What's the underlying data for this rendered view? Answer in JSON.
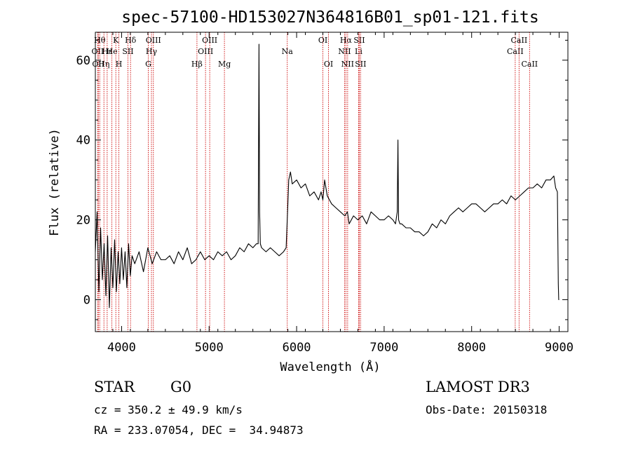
{
  "chart_data": {
    "type": "line",
    "title": "spec-57100-HD153027N364816B01_sp01-121.fits",
    "xlabel": "Wavelength (Å)",
    "ylabel": "Flux (relative)",
    "xlim": [
      3700,
      9100
    ],
    "ylim": [
      -8,
      67
    ],
    "xticks": [
      4000,
      5000,
      6000,
      7000,
      8000,
      9000
    ],
    "yticks": [
      0,
      20,
      40,
      60
    ],
    "grid": false,
    "series": [
      {
        "x": [
          3700,
          3720,
          3740,
          3760,
          3780,
          3800,
          3820,
          3840,
          3860,
          3880,
          3900,
          3920,
          3940,
          3960,
          3980,
          4000,
          4020,
          4040,
          4060,
          4080,
          4100,
          4120,
          4150,
          4200,
          4250,
          4300,
          4350,
          4400,
          4450,
          4500,
          4550,
          4600,
          4650,
          4700,
          4750,
          4800,
          4850,
          4900,
          4950,
          5000,
          5050,
          5100,
          5150,
          5200,
          5250,
          5300,
          5350,
          5400,
          5450,
          5500,
          5540,
          5560,
          5570,
          5577,
          5585,
          5600,
          5650,
          5700,
          5750,
          5800,
          5850,
          5880,
          5900,
          5910,
          5920,
          5930,
          5950,
          6000,
          6050,
          6100,
          6150,
          6200,
          6250,
          6280,
          6300,
          6320,
          6350,
          6400,
          6450,
          6500,
          6550,
          6580,
          6600,
          6650,
          6700,
          6750,
          6800,
          6850,
          6900,
          6950,
          7000,
          7050,
          7100,
          7130,
          7150,
          7158,
          7165,
          7180,
          7200,
          7250,
          7300,
          7350,
          7400,
          7450,
          7500,
          7550,
          7600,
          7650,
          7700,
          7750,
          7800,
          7850,
          7900,
          7950,
          8000,
          8050,
          8100,
          8150,
          8200,
          8250,
          8300,
          8350,
          8400,
          8450,
          8500,
          8550,
          8600,
          8650,
          8700,
          8750,
          8800,
          8850,
          8900,
          8940,
          8960,
          8980,
          8990,
          8995,
          9000
        ],
        "values": [
          12,
          22,
          2,
          18,
          5,
          14,
          1,
          16,
          -2,
          13,
          3,
          15,
          2,
          12,
          4,
          13,
          5,
          12,
          3,
          14,
          6,
          11,
          9,
          12,
          7,
          13,
          9,
          12,
          10,
          10,
          11,
          9,
          12,
          10,
          13,
          9,
          10,
          12,
          10,
          11,
          10,
          12,
          11,
          12,
          10,
          11,
          13,
          12,
          14,
          13,
          14,
          14,
          64,
          22,
          14,
          13,
          12,
          13,
          12,
          11,
          12,
          13,
          24,
          30,
          31,
          32,
          29,
          30,
          28,
          29,
          26,
          27,
          25,
          27,
          25,
          30,
          26,
          24,
          23,
          22,
          21,
          22,
          19,
          21,
          20,
          21,
          19,
          22,
          21,
          20,
          20,
          21,
          20,
          19,
          22,
          40,
          20,
          19,
          19,
          18,
          18,
          17,
          17,
          16,
          17,
          19,
          18,
          20,
          19,
          21,
          22,
          23,
          22,
          23,
          24,
          24,
          23,
          22,
          23,
          24,
          24,
          25,
          24,
          26,
          25,
          26,
          27,
          28,
          28,
          29,
          28,
          30,
          30,
          31,
          28,
          27,
          4,
          0,
          0
        ]
      }
    ],
    "line_markers": [
      {
        "wl": 3727,
        "label": "OII",
        "row": 2
      },
      {
        "wl": 3734,
        "label": "OII",
        "row": 3
      },
      {
        "wl": 3750,
        "label": "Hθ",
        "row": 1
      },
      {
        "wl": 3798,
        "label": "Hη",
        "row": 3
      },
      {
        "wl": 3835,
        "label": "Hε",
        "row": 2
      },
      {
        "wl": 3889,
        "label": "He",
        "row": 2
      },
      {
        "wl": 3934,
        "label": "K",
        "row": 1
      },
      {
        "wl": 3969,
        "label": "H",
        "row": 3
      },
      {
        "wl": 4072,
        "label": "SII",
        "row": 2
      },
      {
        "wl": 4102,
        "label": "Hδ",
        "row": 1
      },
      {
        "wl": 4305,
        "label": "G",
        "row": 3
      },
      {
        "wl": 4341,
        "label": "Hγ",
        "row": 2
      },
      {
        "wl": 4363,
        "label": "OIII",
        "row": 1
      },
      {
        "wl": 4861,
        "label": "Hβ",
        "row": 3
      },
      {
        "wl": 4959,
        "label": "OIII",
        "row": 2
      },
      {
        "wl": 5007,
        "label": "OIII",
        "row": 1
      },
      {
        "wl": 5175,
        "label": "Mg",
        "row": 3
      },
      {
        "wl": 5893,
        "label": "Na",
        "row": 2
      },
      {
        "wl": 6300,
        "label": "OI",
        "row": 1
      },
      {
        "wl": 6364,
        "label": "OI",
        "row": 3
      },
      {
        "wl": 6548,
        "label": "NII",
        "row": 2
      },
      {
        "wl": 6563,
        "label": "Hα",
        "row": 1
      },
      {
        "wl": 6583,
        "label": "NII",
        "row": 3
      },
      {
        "wl": 6708,
        "label": "Li",
        "row": 2
      },
      {
        "wl": 6716,
        "label": "SII",
        "row": 1
      },
      {
        "wl": 6731,
        "label": "SII",
        "row": 3
      },
      {
        "wl": 8498,
        "label": "CaII",
        "row": 2
      },
      {
        "wl": 8542,
        "label": "CaII",
        "row": 1
      },
      {
        "wl": 8662,
        "label": "CaII",
        "row": 3
      }
    ]
  },
  "info": {
    "object_type": "STAR",
    "subclass": "G0",
    "cz": "cz = 350.2 ± 49.9 km/s",
    "coords": "RA = 233.07054, DEC =  34.94873",
    "survey": "LAMOST DR3",
    "obs_date": "Obs-Date: 20150318"
  },
  "colors": {
    "marker_line": "#cc0000",
    "spectrum": "#000000"
  }
}
